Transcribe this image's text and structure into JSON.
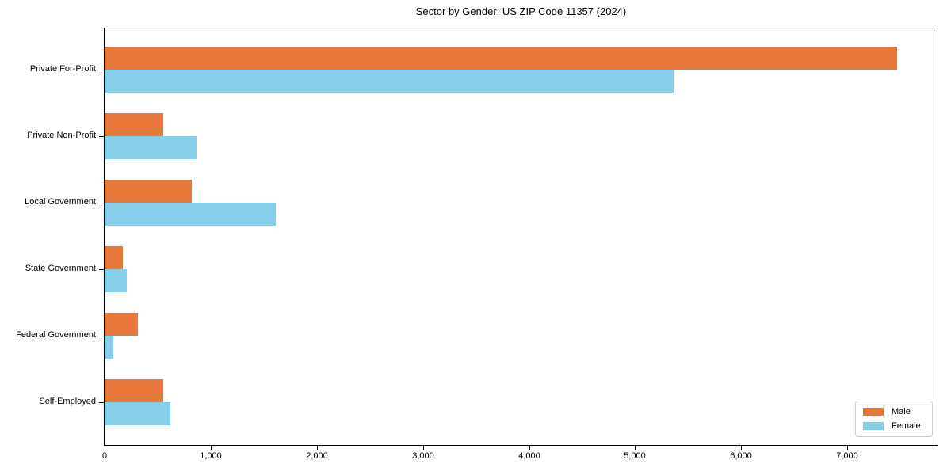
{
  "chart_data": {
    "type": "bar",
    "orientation": "horizontal",
    "title": "Sector by Gender: US ZIP Code 11357 (2024)",
    "xlabel": "",
    "ylabel": "",
    "categories": [
      "Private For-Profit",
      "Private Non-Profit",
      "Local Government",
      "State Government",
      "Federal Government",
      "Self-Employed"
    ],
    "series": [
      {
        "name": "Male",
        "color": "#e8773c",
        "values": [
          7470,
          555,
          820,
          170,
          315,
          550
        ]
      },
      {
        "name": "Female",
        "color": "#87ceeb",
        "values": [
          5360,
          870,
          1610,
          210,
          85,
          620
        ]
      }
    ],
    "xlim": [
      0,
      7850
    ],
    "x_ticks": [
      0,
      1000,
      2000,
      3000,
      4000,
      5000,
      6000,
      7000
    ],
    "x_tick_labels": [
      "0",
      "1,000",
      "2,000",
      "3,000",
      "4,000",
      "5,000",
      "6,000",
      "7,000"
    ],
    "grid": false,
    "legend_position": "lower right",
    "spine_color": "#000000",
    "background_color": "#ffffff"
  }
}
